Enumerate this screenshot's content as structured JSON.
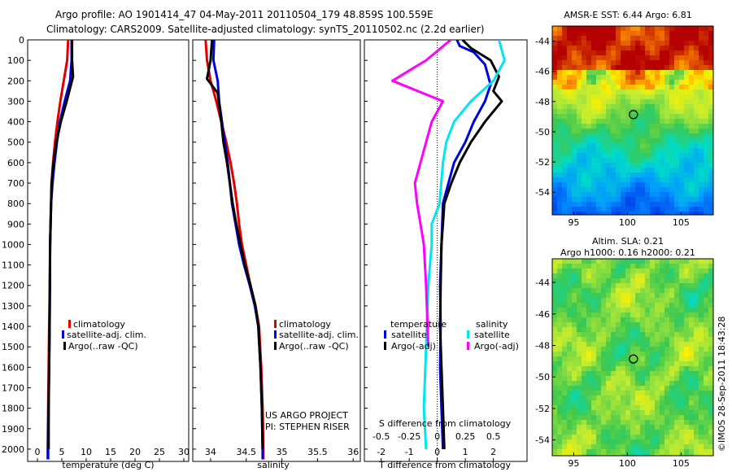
{
  "header": {
    "line1": "Argo profile: AO 1901414_47 04-May-2011 20110504_179 48.859S 100.559E",
    "line2": "Climatology: CARS2009. Satellite-adjusted climatology: synTS_20110502.nc (2.2d earlier)"
  },
  "colors": {
    "climatology": "#e00000",
    "satellite": "#0000dd",
    "argo": "#000000",
    "argo_adj_salinity": "#ff00ff",
    "satellite_salinity": "#00e5ee"
  },
  "chart_data": [
    {
      "type": "line",
      "name": "temperature",
      "xlabel": "temperature (deg C)",
      "ylabel": "",
      "xlim": [
        -2,
        31
      ],
      "ylim": [
        2060,
        0
      ],
      "x_ticks": [
        0,
        5,
        10,
        15,
        20,
        25,
        30
      ],
      "y_ticks": [
        0,
        100,
        200,
        300,
        400,
        500,
        600,
        700,
        800,
        900,
        1000,
        1100,
        1200,
        1300,
        1400,
        1500,
        1600,
        1700,
        1800,
        1900,
        2000
      ],
      "legend": {
        "position": "middle-right",
        "entries": [
          "climatology",
          "satellite-adj. clim.",
          "Argo(..raw -QC)"
        ]
      },
      "series": [
        {
          "name": "climatology",
          "color": "#e00000",
          "points": [
            [
              6.3,
              0
            ],
            [
              6.1,
              100
            ],
            [
              5.4,
              200
            ],
            [
              4.7,
              300
            ],
            [
              4.1,
              400
            ],
            [
              3.6,
              500
            ],
            [
              3.2,
              600
            ],
            [
              2.9,
              700
            ],
            [
              2.8,
              800
            ],
            [
              2.7,
              900
            ],
            [
              2.6,
              1000
            ],
            [
              2.55,
              1200
            ],
            [
              2.4,
              1400
            ],
            [
              2.3,
              1600
            ],
            [
              2.2,
              1800
            ],
            [
              2.1,
              2000
            ],
            [
              2.1,
              2050
            ]
          ]
        },
        {
          "name": "satellite-adj. clim.",
          "color": "#0000dd",
          "points": [
            [
              7.0,
              0
            ],
            [
              7.0,
              100
            ],
            [
              6.7,
              200
            ],
            [
              5.6,
              300
            ],
            [
              4.6,
              400
            ],
            [
              4.0,
              500
            ],
            [
              3.5,
              600
            ],
            [
              3.1,
              700
            ],
            [
              2.8,
              800
            ],
            [
              2.7,
              900
            ],
            [
              2.6,
              1000
            ],
            [
              2.55,
              1200
            ],
            [
              2.5,
              1400
            ],
            [
              2.4,
              1600
            ],
            [
              2.3,
              1800
            ],
            [
              2.2,
              2000
            ],
            [
              2.2,
              2050
            ]
          ]
        },
        {
          "name": "Argo(..raw -QC)",
          "color": "#000000",
          "points": [
            [
              7.1,
              0
            ],
            [
              7.1,
              100
            ],
            [
              7.3,
              180
            ],
            [
              6.0,
              300
            ],
            [
              4.8,
              400
            ],
            [
              3.9,
              500
            ],
            [
              3.3,
              600
            ],
            [
              2.9,
              700
            ],
            [
              2.8,
              800
            ],
            [
              2.7,
              900
            ],
            [
              2.6,
              1000
            ],
            [
              2.55,
              1200
            ],
            [
              2.5,
              1400
            ],
            [
              2.4,
              1600
            ],
            [
              2.3,
              1800
            ],
            [
              2.3,
              2000
            ]
          ]
        }
      ]
    },
    {
      "type": "line",
      "name": "salinity",
      "xlabel": "salinity",
      "ylabel": "",
      "xlim": [
        33.75,
        36.1
      ],
      "ylim": [
        2060,
        0
      ],
      "x_ticks": [
        34,
        34.5,
        35,
        35.5,
        36
      ],
      "x_tick_labels": [
        "34",
        "34.5",
        "35",
        "35.5",
        "36"
      ],
      "legend": {
        "position": "middle-right",
        "entries": [
          "climatology",
          "satellite-adj. clim.",
          "Argo(..raw -QC)"
        ]
      },
      "annotations": [
        "US ARGO PROJECT",
        "PI: STEPHEN RISER"
      ],
      "series": [
        {
          "name": "climatology",
          "color": "#e00000",
          "points": [
            [
              33.93,
              0
            ],
            [
              33.95,
              100
            ],
            [
              34.0,
              200
            ],
            [
              34.08,
              300
            ],
            [
              34.15,
              400
            ],
            [
              34.22,
              500
            ],
            [
              34.28,
              600
            ],
            [
              34.33,
              700
            ],
            [
              34.37,
              800
            ],
            [
              34.4,
              900
            ],
            [
              34.44,
              1000
            ],
            [
              34.5,
              1100
            ],
            [
              34.56,
              1200
            ],
            [
              34.63,
              1300
            ],
            [
              34.68,
              1400
            ],
            [
              34.71,
              1600
            ],
            [
              34.73,
              1800
            ],
            [
              34.74,
              2000
            ],
            [
              34.74,
              2050
            ]
          ]
        },
        {
          "name": "satellite-adj. clim.",
          "color": "#0000dd",
          "points": [
            [
              34.05,
              0
            ],
            [
              34.04,
              100
            ],
            [
              34.1,
              200
            ],
            [
              34.12,
              300
            ],
            [
              34.16,
              400
            ],
            [
              34.2,
              500
            ],
            [
              34.24,
              600
            ],
            [
              34.27,
              700
            ],
            [
              34.3,
              800
            ],
            [
              34.35,
              900
            ],
            [
              34.4,
              1000
            ],
            [
              34.47,
              1100
            ],
            [
              34.55,
              1200
            ],
            [
              34.62,
              1300
            ],
            [
              34.67,
              1400
            ],
            [
              34.7,
              1600
            ],
            [
              34.72,
              1800
            ],
            [
              34.73,
              2000
            ],
            [
              34.73,
              2050
            ]
          ]
        },
        {
          "name": "Argo(..raw -QC)",
          "color": "#000000",
          "points": [
            [
              34.02,
              0
            ],
            [
              34.0,
              100
            ],
            [
              33.95,
              190
            ],
            [
              34.1,
              260
            ],
            [
              34.15,
              400
            ],
            [
              34.18,
              500
            ],
            [
              34.23,
              600
            ],
            [
              34.27,
              700
            ],
            [
              34.31,
              800
            ],
            [
              34.36,
              900
            ],
            [
              34.42,
              1000
            ],
            [
              34.48,
              1100
            ],
            [
              34.56,
              1200
            ],
            [
              34.63,
              1300
            ],
            [
              34.67,
              1400
            ],
            [
              34.7,
              1600
            ],
            [
              34.72,
              1800
            ],
            [
              34.73,
              2000
            ]
          ]
        }
      ]
    },
    {
      "type": "line",
      "name": "difference from climatology",
      "xlabel": "T difference from climatology",
      "xlabel_top": "S difference from climatology",
      "xlim": [
        -2.6,
        3.2
      ],
      "ylim": [
        2060,
        0
      ],
      "x_ticks": [
        -2,
        -1,
        0,
        1,
        2
      ],
      "x_tick_labels": [
        "-2",
        "-1",
        "0",
        "1",
        "2"
      ],
      "s_ticks": [
        -0.5,
        -0.25,
        0,
        0.25,
        0.5
      ],
      "s_tick_labels": [
        "-0.5",
        "-0.25",
        "0",
        "0.25",
        "0.5"
      ],
      "legend": {
        "position": "bottom",
        "temperature_title": "temperature",
        "salinity_title": "salinity",
        "entries": [
          "satellite",
          "Argo(-adj)",
          "satellite",
          "Argo(-adj)"
        ]
      },
      "series": [
        {
          "name": "temperature satellite",
          "color": "#0000dd",
          "points": [
            [
              0.7,
              0
            ],
            [
              0.8,
              30
            ],
            [
              1.3,
              60
            ],
            [
              1.7,
              120
            ],
            [
              1.9,
              220
            ],
            [
              1.7,
              300
            ],
            [
              1.3,
              400
            ],
            [
              1.0,
              500
            ],
            [
              0.6,
              600
            ],
            [
              0.4,
              700
            ],
            [
              0.2,
              800
            ],
            [
              0.15,
              1000
            ],
            [
              0.1,
              1200
            ],
            [
              0.12,
              1400
            ],
            [
              0.1,
              1600
            ],
            [
              0.15,
              1800
            ],
            [
              0.2,
              2000
            ]
          ]
        },
        {
          "name": "temperature Argo(-adj)",
          "color": "#000000",
          "points": [
            [
              0.9,
              0
            ],
            [
              1.2,
              40
            ],
            [
              1.9,
              100
            ],
            [
              2.2,
              180
            ],
            [
              2.0,
              250
            ],
            [
              2.3,
              300
            ],
            [
              1.7,
              400
            ],
            [
              1.2,
              500
            ],
            [
              0.8,
              600
            ],
            [
              0.5,
              700
            ],
            [
              0.25,
              800
            ],
            [
              0.2,
              900
            ],
            [
              0.15,
              1000
            ],
            [
              0.12,
              1200
            ],
            [
              0.1,
              1400
            ],
            [
              0.15,
              1600
            ],
            [
              0.2,
              1800
            ],
            [
              0.25,
              2000
            ]
          ]
        },
        {
          "name": "salinity satellite",
          "color": "#00e5ee",
          "points": [
            [
              0.55,
              0
            ],
            [
              0.6,
              100
            ],
            [
              0.5,
              200
            ],
            [
              0.3,
              300
            ],
            [
              0.15,
              400
            ],
            [
              0.08,
              500
            ],
            [
              0.05,
              600
            ],
            [
              0.02,
              800
            ],
            [
              -0.05,
              900
            ],
            [
              -0.05,
              1000
            ],
            [
              -0.08,
              1200
            ],
            [
              -0.1,
              1500
            ],
            [
              -0.12,
              1800
            ],
            [
              -0.1,
              2000
            ]
          ]
        },
        {
          "name": "salinity Argo(-adj)",
          "color": "#ff00ff",
          "points": [
            [
              0.12,
              0
            ],
            [
              -0.1,
              100
            ],
            [
              -0.4,
              200
            ],
            [
              0.05,
              300
            ],
            [
              -0.05,
              400
            ],
            [
              -0.1,
              500
            ],
            [
              -0.15,
              600
            ],
            [
              -0.2,
              700
            ],
            [
              -0.18,
              800
            ],
            [
              -0.15,
              900
            ],
            [
              -0.12,
              1000
            ],
            [
              -0.1,
              1200
            ],
            [
              -0.08,
              1500
            ]
          ]
        }
      ]
    },
    {
      "type": "heatmap",
      "name": "sst map",
      "title": "AMSR-E SST: 6.44 Argo: 6.81",
      "xlim": [
        93,
        108
      ],
      "ylim": [
        -55.5,
        -43
      ],
      "x_ticks": [
        95,
        100,
        105
      ],
      "y_ticks": [
        -44,
        -46,
        -48,
        -50,
        -52,
        -54
      ],
      "marker": {
        "lon": 100.559,
        "lat": -48.859
      }
    },
    {
      "type": "heatmap",
      "name": "altimetry map",
      "title_lines": [
        "Altim. SLA: 0.21",
        "Argo h1000: 0.16 h2000: 0.21"
      ],
      "xlim": [
        93,
        108
      ],
      "ylim": [
        -55,
        -42.5
      ],
      "x_ticks": [
        95,
        100,
        105
      ],
      "y_ticks": [
        -44,
        -46,
        -48,
        -50,
        -52,
        -54
      ],
      "marker": {
        "lon": 100.559,
        "lat": -48.859
      }
    }
  ],
  "footer": {
    "stamp": "©IMOS 28-Sep-2011 18:43:28"
  }
}
